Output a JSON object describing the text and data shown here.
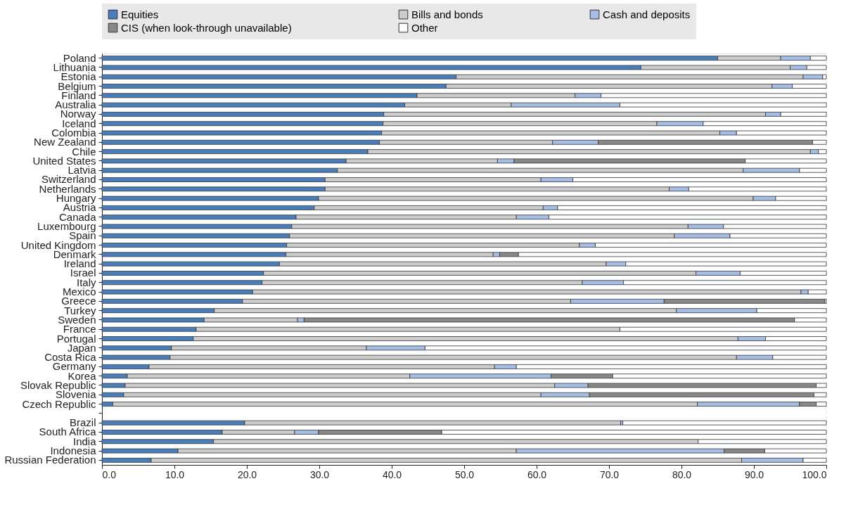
{
  "chart_data": {
    "type": "bar",
    "orientation": "horizontal",
    "stacked": true,
    "categories": [
      "Poland",
      "Lithuania",
      "Estonia",
      "Belgium",
      "Finland",
      "Australia",
      "Norway",
      "Iceland",
      "Colombia",
      "New Zealand",
      "Chile",
      "United States",
      "Latvia",
      "Switzerland",
      "Netherlands",
      "Hungary",
      "Austria",
      "Canada",
      "Luxembourg",
      "Spain",
      "United Kingdom",
      "Denmark",
      "Ireland",
      "Israel",
      "Italy",
      "Mexico",
      "Greece",
      "Turkey",
      "Sweden",
      "France",
      "Portugal",
      "Japan",
      "Costa Rica",
      "Germany",
      "Korea",
      "Slovak Republic",
      "Slovenia",
      "Czech Republic",
      null,
      "Brazil",
      "South Africa",
      "India",
      "Indonesia",
      "Russian Federation"
    ],
    "series": [
      {
        "name": "Equities",
        "color": "#4a7ebb",
        "values": [
          85.0,
          74.4,
          48.9,
          47.5,
          43.5,
          41.8,
          38.9,
          38.8,
          38.6,
          38.3,
          36.7,
          33.7,
          32.5,
          30.8,
          30.8,
          29.9,
          29.3,
          26.8,
          26.2,
          25.9,
          25.5,
          25.4,
          24.5,
          22.3,
          22.1,
          20.8,
          19.4,
          15.5,
          14.1,
          13.0,
          12.6,
          9.6,
          9.4,
          6.5,
          3.5,
          3.2,
          3.0,
          1.5,
          null,
          19.7,
          16.6,
          15.4,
          10.5,
          6.8
        ]
      },
      {
        "name": "Bills and bonds",
        "color": "#cccccc",
        "values": [
          8.7,
          20.6,
          47.9,
          45.0,
          21.8,
          14.7,
          52.7,
          37.8,
          46.7,
          23.9,
          61.1,
          20.9,
          56.0,
          29.8,
          47.5,
          60.0,
          31.6,
          30.4,
          54.7,
          53.1,
          40.4,
          28.6,
          45.1,
          59.7,
          44.2,
          75.7,
          45.3,
          63.8,
          12.9,
          58.5,
          75.2,
          26.9,
          78.2,
          47.7,
          39.0,
          59.3,
          57.6,
          80.7,
          null,
          51.9,
          10.0,
          66.9,
          46.7,
          81.5
        ]
      },
      {
        "name": "Cash and deposits",
        "color": "#a6bde6",
        "values": [
          4.1,
          2.3,
          2.7,
          2.8,
          3.6,
          15.0,
          2.1,
          6.4,
          2.3,
          6.3,
          1.1,
          2.3,
          7.8,
          4.4,
          2.7,
          3.1,
          2.0,
          4.5,
          4.9,
          7.7,
          2.2,
          0.9,
          2.7,
          6.1,
          5.7,
          1.0,
          12.9,
          11.1,
          0.9,
          null,
          3.8,
          8.1,
          5.0,
          3.0,
          19.5,
          4.6,
          6.7,
          14.1,
          null,
          0.3,
          3.3,
          null,
          28.7,
          8.5
        ]
      },
      {
        "name": "CIS (when look-through unavailable)",
        "color": "#888888",
        "values": [
          null,
          null,
          null,
          null,
          null,
          null,
          null,
          null,
          null,
          29.6,
          null,
          31.9,
          null,
          null,
          null,
          null,
          null,
          null,
          null,
          null,
          null,
          2.6,
          null,
          null,
          null,
          null,
          22.2,
          null,
          67.7,
          null,
          null,
          null,
          null,
          null,
          8.5,
          31.5,
          31.0,
          2.3,
          null,
          null,
          17.0,
          null,
          5.6,
          null
        ]
      },
      {
        "name": "Other",
        "color": "#fbfcfe",
        "values": [
          2.2,
          2.7,
          0.5,
          4.7,
          31.1,
          28.5,
          6.3,
          17.0,
          12.4,
          1.9,
          1.1,
          11.2,
          3.7,
          35.0,
          19.0,
          7.0,
          37.1,
          38.3,
          14.2,
          13.3,
          31.9,
          42.5,
          27.7,
          11.9,
          28.0,
          2.5,
          0.2,
          9.6,
          4.4,
          28.5,
          8.4,
          55.4,
          7.4,
          42.8,
          29.5,
          1.4,
          1.7,
          1.4,
          null,
          28.1,
          53.1,
          17.7,
          8.5,
          3.2
        ]
      }
    ],
    "xlim": [
      0,
      100
    ],
    "xticks": [
      {
        "value": 0,
        "label": "0.0"
      },
      {
        "value": 10,
        "label": "10.0"
      },
      {
        "value": 20,
        "label": "20.0"
      },
      {
        "value": 30,
        "label": "30.0"
      },
      {
        "value": 40,
        "label": "40.0"
      },
      {
        "value": 50,
        "label": "50.0"
      },
      {
        "value": 60,
        "label": "60.0"
      },
      {
        "value": 70,
        "label": "70.0"
      },
      {
        "value": 80,
        "label": "80.0"
      },
      {
        "value": 90,
        "label": "90.0"
      },
      {
        "value": 100,
        "label": "100.0"
      }
    ],
    "grid": "x",
    "legend": "top"
  }
}
